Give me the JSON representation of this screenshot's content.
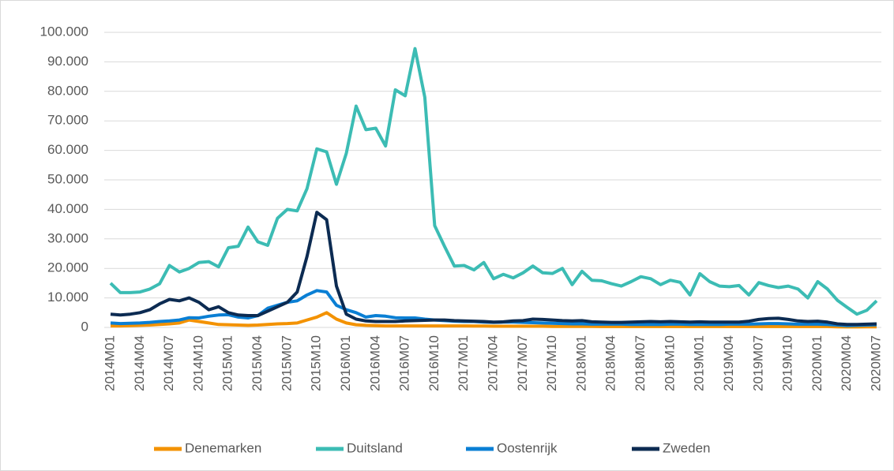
{
  "chart_data": {
    "type": "line",
    "categories": [
      "2014M01",
      null,
      null,
      "2014M04",
      null,
      null,
      "2014M07",
      null,
      null,
      "2014M10",
      null,
      null,
      "2015M01",
      null,
      null,
      "2015M04",
      null,
      null,
      "2015M07",
      null,
      null,
      "2015M10",
      null,
      null,
      "2016M01",
      null,
      null,
      "2016M04",
      null,
      null,
      "2016M07",
      null,
      null,
      "2016M10",
      null,
      null,
      "2017M01",
      null,
      null,
      "2017M04",
      null,
      null,
      "2017M07",
      null,
      null,
      "2017M10",
      null,
      null,
      "2018M01",
      null,
      null,
      "2018M04",
      null,
      null,
      "2018M07",
      null,
      null,
      "2018M10",
      null,
      null,
      "2019M01",
      null,
      null,
      "2019M04",
      null,
      null,
      "2019M07",
      null,
      null,
      "2019M10",
      null,
      null,
      "2020M01",
      null,
      null,
      "2020M04",
      null,
      null,
      "2020M07"
    ],
    "series": [
      {
        "name": "Denemarken",
        "color": "#f39200",
        "values": [
          500,
          500,
          600,
          700,
          800,
          1000,
          1200,
          1500,
          2500,
          2000,
          1500,
          1000,
          900,
          800,
          700,
          800,
          1000,
          1200,
          1300,
          1500,
          2500,
          3500,
          5000,
          2800,
          1500,
          900,
          700,
          600,
          500,
          500,
          500,
          500,
          500,
          500,
          500,
          500,
          500,
          450,
          450,
          400,
          400,
          400,
          400,
          400,
          400,
          350,
          350,
          350,
          350,
          350,
          300,
          300,
          300,
          300,
          300,
          300,
          300,
          300,
          300,
          300,
          300,
          300,
          300,
          300,
          300,
          300,
          300,
          300,
          300,
          300,
          300,
          300,
          300,
          300,
          200,
          150,
          150,
          200,
          200
        ]
      },
      {
        "name": "Duitsland",
        "color": "#3cbcb4",
        "values": [
          15000,
          11800,
          11800,
          12000,
          13000,
          14800,
          21000,
          18800,
          20000,
          22000,
          22300,
          20500,
          27000,
          27500,
          34000,
          29000,
          27800,
          37000,
          40000,
          39500,
          47000,
          60500,
          59500,
          48500,
          59000,
          75000,
          67000,
          67500,
          61500,
          80500,
          78500,
          94500,
          78000,
          34500,
          27500,
          20800,
          21000,
          19500,
          22000,
          16500,
          18000,
          16800,
          18500,
          20800,
          18500,
          18300,
          20000,
          14500,
          19000,
          16000,
          15800,
          14800,
          14000,
          15500,
          17200,
          16500,
          14500,
          16000,
          15300,
          11000,
          18200,
          15500,
          14000,
          13800,
          14200,
          11000,
          15200,
          14200,
          13500,
          14000,
          13000,
          10000,
          15500,
          13000,
          9200,
          6800,
          4500,
          5800,
          9000
        ]
      },
      {
        "name": "Oostenrijk",
        "color": "#0a7fd4",
        "values": [
          1500,
          1300,
          1400,
          1500,
          1700,
          2000,
          2200,
          2500,
          3300,
          3200,
          3800,
          4200,
          4300,
          3500,
          3200,
          4000,
          6500,
          7500,
          8500,
          9000,
          11000,
          12500,
          12000,
          7500,
          6000,
          5000,
          3500,
          4000,
          3800,
          3300,
          3200,
          3200,
          2800,
          2500,
          2300,
          2100,
          2000,
          2000,
          1800,
          1700,
          1800,
          1800,
          1700,
          1600,
          1500,
          1400,
          1300,
          1200,
          1200,
          1100,
          1100,
          1100,
          1100,
          1000,
          1000,
          1000,
          1000,
          1100,
          1100,
          1000,
          1000,
          1000,
          1000,
          1100,
          1100,
          1100,
          1200,
          1300,
          1300,
          1200,
          1100,
          1100,
          1100,
          1000,
          800,
          600,
          700,
          800,
          900
        ]
      },
      {
        "name": "Zweden",
        "color": "#0c2b52",
        "values": [
          4500,
          4200,
          4500,
          5000,
          6000,
          8000,
          9500,
          9000,
          10000,
          8500,
          6000,
          7000,
          5000,
          4200,
          4000,
          4000,
          5500,
          7000,
          8500,
          12000,
          24000,
          39000,
          36500,
          14000,
          4500,
          2800,
          2200,
          2000,
          2000,
          2000,
          2200,
          2300,
          2400,
          2500,
          2500,
          2300,
          2200,
          2100,
          2000,
          1800,
          1900,
          2200,
          2300,
          2800,
          2700,
          2500,
          2300,
          2200,
          2300,
          1900,
          1800,
          1700,
          1700,
          1800,
          1900,
          2000,
          1900,
          2000,
          1900,
          1800,
          1900,
          1800,
          1800,
          1800,
          1800,
          2100,
          2700,
          3000,
          3100,
          2700,
          2200,
          2000,
          2100,
          1800,
          1200,
          1000,
          1000,
          1100,
          1200
        ]
      }
    ],
    "ylim": [
      0,
      100000
    ],
    "yticks": [
      0,
      {
        "value": 10000,
        "label": "10.000"
      },
      {
        "value": 20000,
        "label": "20.000"
      },
      {
        "value": 30000,
        "label": "30.000"
      },
      {
        "value": 40000,
        "label": "40.000"
      },
      {
        "value": 50000,
        "label": "50.000"
      },
      {
        "value": 60000,
        "label": "60.000"
      },
      {
        "value": 70000,
        "label": "70.000"
      },
      {
        "value": 80000,
        "label": "80.000"
      },
      {
        "value": 90000,
        "label": "90.000"
      },
      {
        "value": 100000,
        "label": "100.000"
      }
    ],
    "grid": true,
    "legend": "bottom"
  }
}
